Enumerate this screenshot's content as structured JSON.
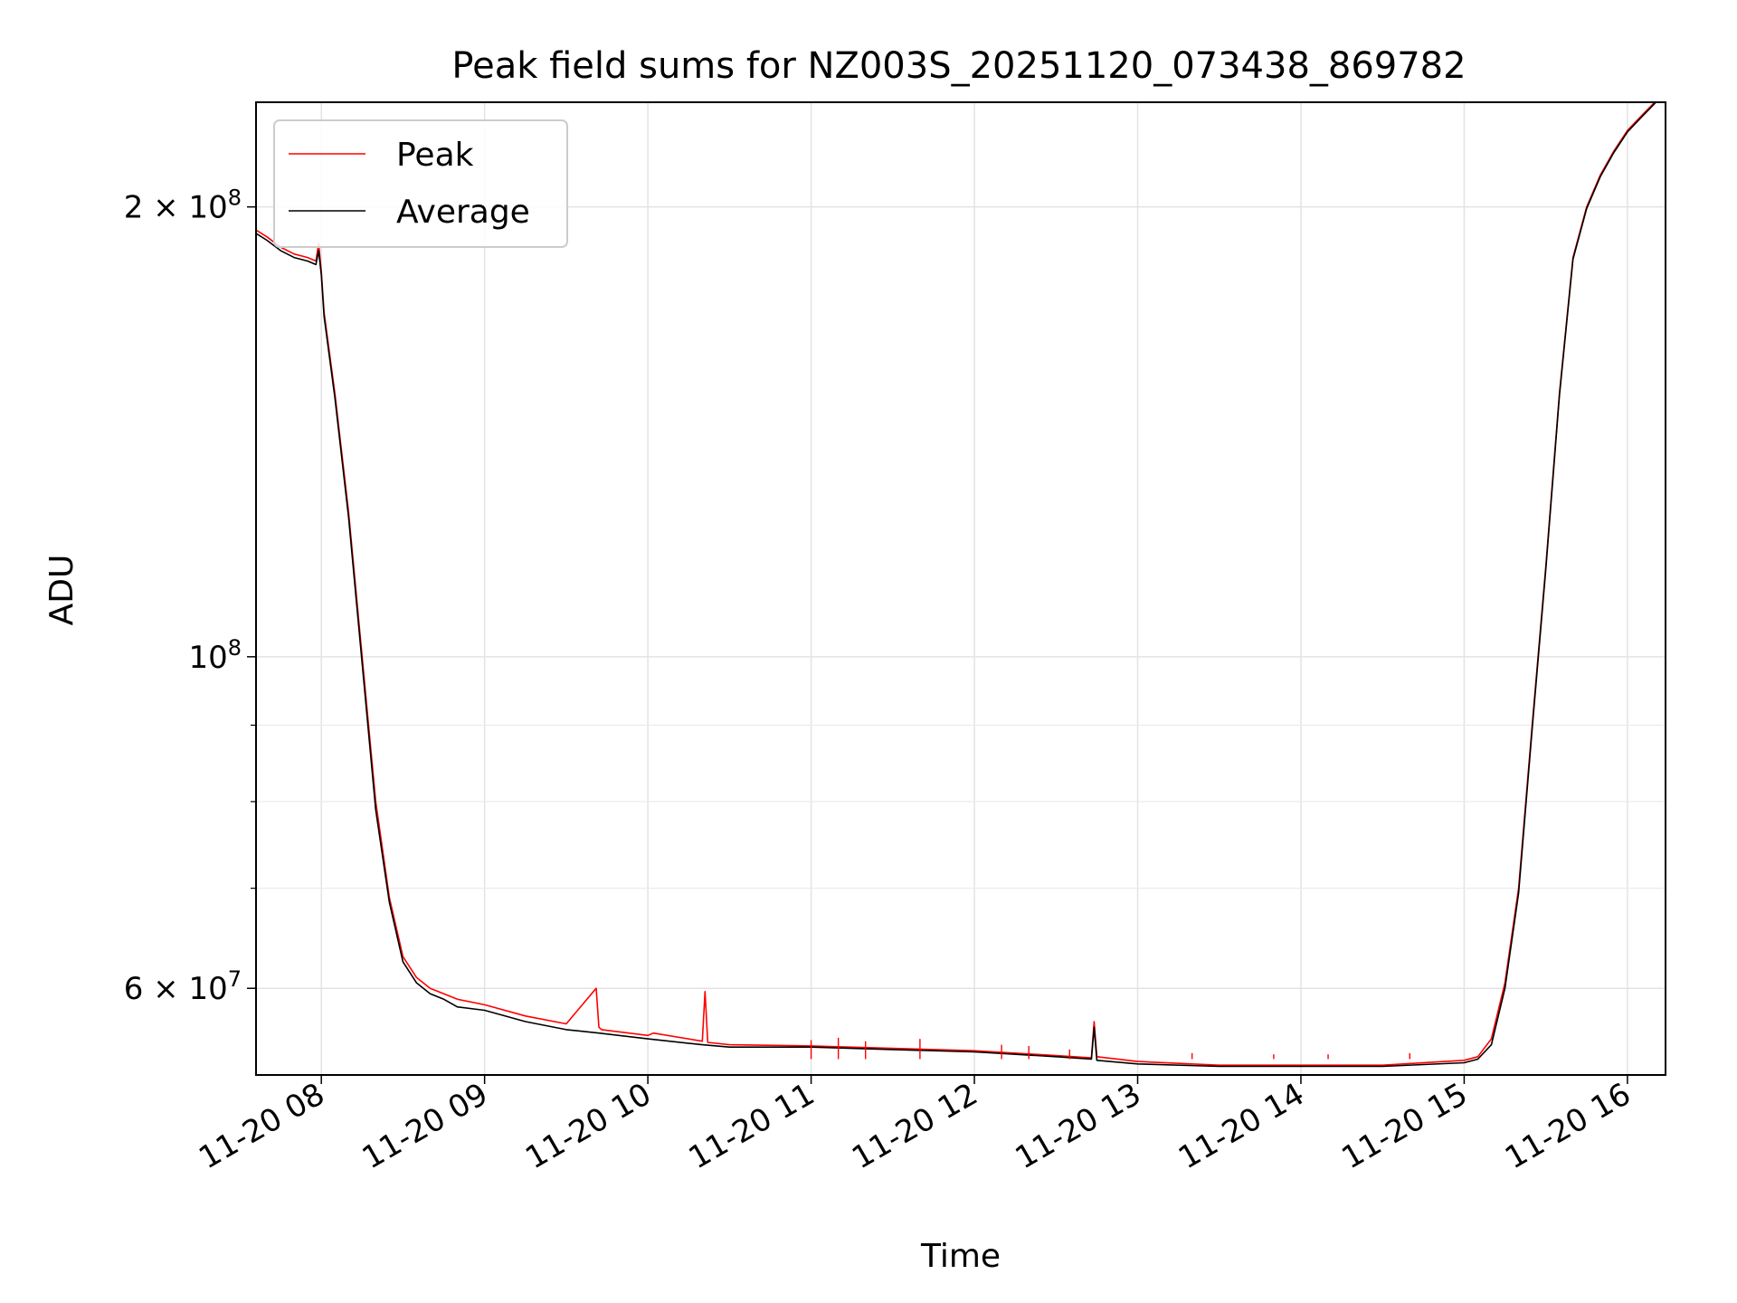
{
  "chart_data": {
    "type": "line",
    "title": "Peak field sums for NZ003S_20251120_073438_869782",
    "xlabel": "Time",
    "ylabel": "ADU",
    "y_scale": "log",
    "grid": true,
    "legend_position": "top-left",
    "xlim": [
      "2025-11-20 07:36",
      "2025-11-20 16:14"
    ],
    "ylim": [
      52500000,
      235000000
    ],
    "x_ticks": [
      {
        "value": "2025-11-20 08:00",
        "label": "11-20 08"
      },
      {
        "value": "2025-11-20 09:00",
        "label": "11-20 09"
      },
      {
        "value": "2025-11-20 10:00",
        "label": "11-20 10"
      },
      {
        "value": "2025-11-20 11:00",
        "label": "11-20 11"
      },
      {
        "value": "2025-11-20 12:00",
        "label": "11-20 12"
      },
      {
        "value": "2025-11-20 13:00",
        "label": "11-20 13"
      },
      {
        "value": "2025-11-20 14:00",
        "label": "11-20 14"
      },
      {
        "value": "2025-11-20 15:00",
        "label": "11-20 15"
      },
      {
        "value": "2025-11-20 16:00",
        "label": "11-20 16"
      }
    ],
    "y_ticks": [
      {
        "value": 200000000,
        "mant": "2",
        "exp": "8"
      },
      {
        "value": 100000000,
        "mant": "",
        "exp": "8"
      },
      {
        "value": 60000000,
        "mant": "6",
        "exp": "7"
      }
    ],
    "y_minor_ticks": [
      70000000,
      80000000,
      90000000
    ],
    "series": [
      {
        "name": "Peak",
        "color": "#ff0000",
        "x": [
          "2025-11-20 07:36",
          "2025-11-20 07:40",
          "2025-11-20 07:45",
          "2025-11-20 07:50",
          "2025-11-20 07:55",
          "2025-11-20 07:58",
          "2025-11-20 07:59",
          "2025-11-20 08:00",
          "2025-11-20 08:01",
          "2025-11-20 08:05",
          "2025-11-20 08:10",
          "2025-11-20 08:15",
          "2025-11-20 08:20",
          "2025-11-20 08:25",
          "2025-11-20 08:30",
          "2025-11-20 08:35",
          "2025-11-20 08:40",
          "2025-11-20 08:45",
          "2025-11-20 08:50",
          "2025-11-20 09:00",
          "2025-11-20 09:15",
          "2025-11-20 09:30",
          "2025-11-20 09:41",
          "2025-11-20 09:42",
          "2025-11-20 09:43",
          "2025-11-20 10:00",
          "2025-11-20 10:02",
          "2025-11-20 10:20",
          "2025-11-20 10:21",
          "2025-11-20 10:22",
          "2025-11-20 10:30",
          "2025-11-20 11:00",
          "2025-11-20 11:30",
          "2025-11-20 12:00",
          "2025-11-20 12:30",
          "2025-11-20 12:43",
          "2025-11-20 12:44",
          "2025-11-20 12:45",
          "2025-11-20 13:00",
          "2025-11-20 13:30",
          "2025-11-20 14:00",
          "2025-11-20 14:30",
          "2025-11-20 15:00",
          "2025-11-20 15:05",
          "2025-11-20 15:10",
          "2025-11-20 15:15",
          "2025-11-20 15:20",
          "2025-11-20 15:25",
          "2025-11-20 15:30",
          "2025-11-20 15:35",
          "2025-11-20 15:40",
          "2025-11-20 15:45",
          "2025-11-20 15:50",
          "2025-11-20 15:55",
          "2025-11-20 16:00",
          "2025-11-20 16:05",
          "2025-11-20 16:10",
          "2025-11-20 16:12"
        ],
        "y": [
          193000000,
          191000000,
          188000000,
          186000000,
          185000000,
          184000000,
          189000000,
          181000000,
          170000000,
          150000000,
          125000000,
          100000000,
          80000000,
          69000000,
          63000000,
          61000000,
          60000000,
          59500000,
          59000000,
          58500000,
          57500000,
          56800000,
          60000000,
          56500000,
          56300000,
          55800000,
          56000000,
          55300000,
          59700000,
          55200000,
          55000000,
          54900000,
          54700000,
          54500000,
          54100000,
          53900000,
          57000000,
          54000000,
          53600000,
          53300000,
          53300000,
          53300000,
          53700000,
          54000000,
          55500000,
          60500000,
          70000000,
          90000000,
          115000000,
          150000000,
          185000000,
          200000000,
          210000000,
          218000000,
          225000000,
          230000000,
          235000000,
          238000000
        ]
      },
      {
        "name": "Average",
        "color": "#000000",
        "x": [
          "2025-11-20 07:36",
          "2025-11-20 07:40",
          "2025-11-20 07:45",
          "2025-11-20 07:50",
          "2025-11-20 07:55",
          "2025-11-20 07:58",
          "2025-11-20 07:59",
          "2025-11-20 08:00",
          "2025-11-20 08:01",
          "2025-11-20 08:05",
          "2025-11-20 08:10",
          "2025-11-20 08:15",
          "2025-11-20 08:20",
          "2025-11-20 08:25",
          "2025-11-20 08:30",
          "2025-11-20 08:35",
          "2025-11-20 08:40",
          "2025-11-20 08:45",
          "2025-11-20 08:50",
          "2025-11-20 09:00",
          "2025-11-20 09:15",
          "2025-11-20 09:30",
          "2025-11-20 09:42",
          "2025-11-20 10:00",
          "2025-11-20 10:20",
          "2025-11-20 10:30",
          "2025-11-20 11:00",
          "2025-11-20 11:30",
          "2025-11-20 12:00",
          "2025-11-20 12:30",
          "2025-11-20 12:43",
          "2025-11-20 12:44",
          "2025-11-20 12:45",
          "2025-11-20 13:00",
          "2025-11-20 13:30",
          "2025-11-20 14:00",
          "2025-11-20 14:30",
          "2025-11-20 15:00",
          "2025-11-20 15:05",
          "2025-11-20 15:10",
          "2025-11-20 15:15",
          "2025-11-20 15:20",
          "2025-11-20 15:25",
          "2025-11-20 15:30",
          "2025-11-20 15:35",
          "2025-11-20 15:40",
          "2025-11-20 15:45",
          "2025-11-20 15:50",
          "2025-11-20 15:55",
          "2025-11-20 16:00",
          "2025-11-20 16:05",
          "2025-11-20 16:10",
          "2025-11-20 16:12"
        ],
        "y": [
          192000000,
          190000000,
          187000000,
          185000000,
          184000000,
          183000000,
          187000000,
          180000000,
          169000000,
          149000000,
          124000000,
          99000000,
          79000000,
          68500000,
          62500000,
          60500000,
          59500000,
          59000000,
          58300000,
          58000000,
          57000000,
          56300000,
          56000000,
          55500000,
          55000000,
          54800000,
          54800000,
          54600000,
          54400000,
          54000000,
          53800000,
          56500000,
          53700000,
          53400000,
          53200000,
          53200000,
          53200000,
          53500000,
          53800000,
          55000000,
          60000000,
          69500000,
          89500000,
          114500000,
          149500000,
          184500000,
          199500000,
          209500000,
          217500000,
          224500000,
          229500000,
          234500000,
          237500000
        ]
      }
    ],
    "spikes": [
      {
        "series": "Peak",
        "x": "2025-11-20 11:00",
        "y": 55400000
      },
      {
        "series": "Peak",
        "x": "2025-11-20 11:10",
        "y": 55600000
      },
      {
        "series": "Peak",
        "x": "2025-11-20 11:20",
        "y": 55300000
      },
      {
        "series": "Peak",
        "x": "2025-11-20 11:40",
        "y": 55500000
      },
      {
        "series": "Peak",
        "x": "2025-11-20 12:10",
        "y": 55000000
      },
      {
        "series": "Peak",
        "x": "2025-11-20 12:20",
        "y": 54900000
      },
      {
        "series": "Peak",
        "x": "2025-11-20 12:35",
        "y": 54600000
      },
      {
        "series": "Peak",
        "x": "2025-11-20 13:20",
        "y": 54300000
      },
      {
        "series": "Peak",
        "x": "2025-11-20 13:50",
        "y": 54200000
      },
      {
        "series": "Peak",
        "x": "2025-11-20 14:10",
        "y": 54200000
      },
      {
        "series": "Peak",
        "x": "2025-11-20 14:40",
        "y": 54300000
      }
    ]
  }
}
